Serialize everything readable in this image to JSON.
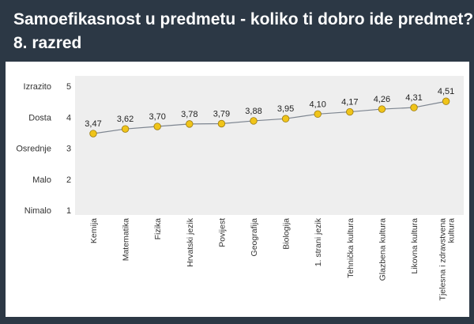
{
  "title": "Samoefikasnost u predmetu - koliko ti dobro ide predmet?",
  "subtitle": "8. razred",
  "colors": {
    "background": "#2c3845",
    "panel": "#ffffff",
    "plot_fill": "#eeeeee",
    "line": "#7d8590",
    "marker": "#f0c419",
    "marker_stroke": "#9a7a10"
  },
  "chart_data": {
    "type": "line",
    "categories": [
      "Kemija",
      "Matematika",
      "Fizika",
      "Hrvatski jezik",
      "Povijest",
      "Geografija",
      "Biologija",
      "1. strani jezik",
      "Tehnička kultura",
      "Glazbena kultura",
      "Likovna kultura",
      "Tjelesna i zdravstvena kultura"
    ],
    "category_label_lines": [
      [
        "Kemija"
      ],
      [
        "Matematika"
      ],
      [
        "Fizika"
      ],
      [
        "Hrvatski jezik"
      ],
      [
        "Povijest"
      ],
      [
        "Geografija"
      ],
      [
        "Biologija"
      ],
      [
        "1. strani jezik"
      ],
      [
        "Tehnička kultura"
      ],
      [
        "Glazbena kultura"
      ],
      [
        "Likovna kultura"
      ],
      [
        "Tjelesna i zdravstvena",
        "kultura"
      ]
    ],
    "values": [
      3.47,
      3.62,
      3.7,
      3.78,
      3.79,
      3.88,
      3.95,
      4.1,
      4.17,
      4.26,
      4.31,
      4.51
    ],
    "data_labels": [
      "3,47",
      "3,62",
      "3,70",
      "3,78",
      "3,79",
      "3,88",
      "3,95",
      "4,10",
      "4,17",
      "4,26",
      "4,31",
      "4,51"
    ],
    "y_ticks": [
      {
        "value": 5,
        "number": "5",
        "word": "Izrazito"
      },
      {
        "value": 4,
        "number": "4",
        "word": "Dosta"
      },
      {
        "value": 3,
        "number": "3",
        "word": "Osrednje"
      },
      {
        "value": 2,
        "number": "2",
        "word": "Malo"
      },
      {
        "value": 1,
        "number": "1",
        "word": "Nimalo"
      }
    ],
    "ylim": [
      1,
      5
    ],
    "grid": false,
    "legend": "none"
  }
}
